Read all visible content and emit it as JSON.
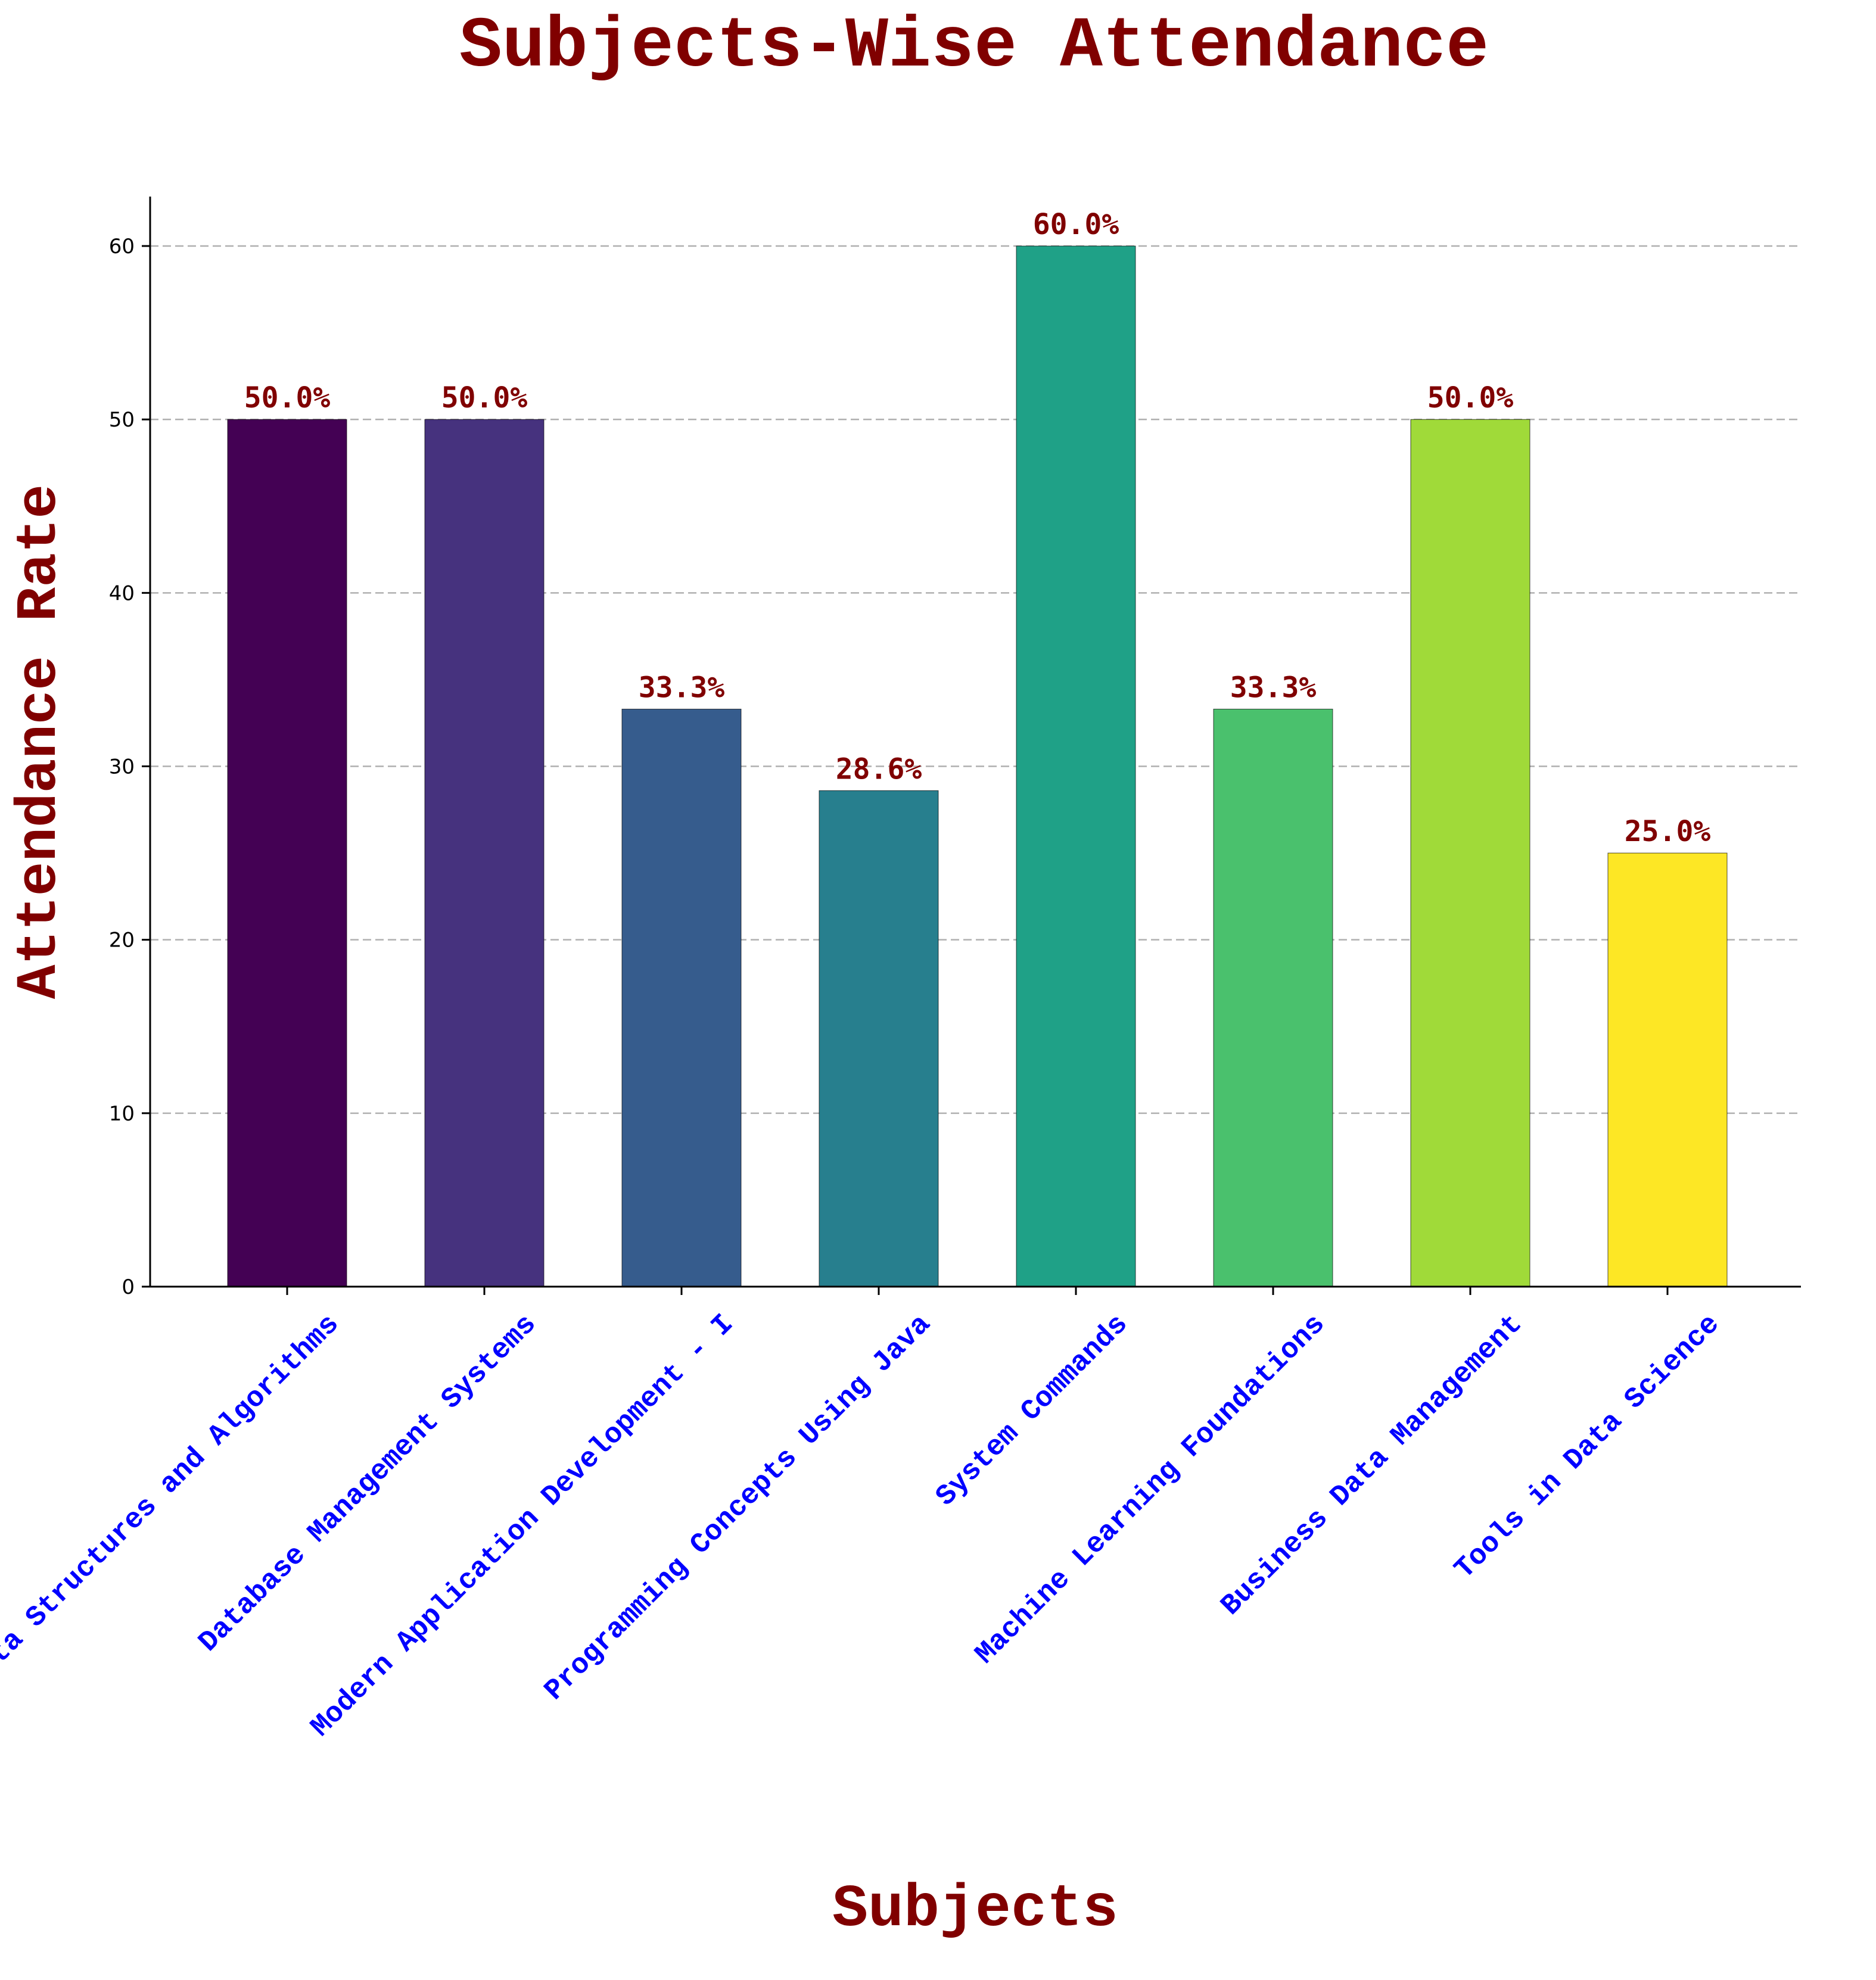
{
  "chart_data": {
    "type": "bar",
    "title": "Subjects-Wise Attendance",
    "xlabel": "Subjects",
    "ylabel": "Attendance Rate",
    "categories": [
      "Data Structures and Algorithms",
      "Database Management Systems",
      "Modern Application Development - I",
      "Programming Concepts Using Java",
      "System Commands",
      "Machine Learning Foundations",
      "Business Data Management",
      "Tools in Data Science"
    ],
    "values": [
      50.0,
      50.0,
      33.3,
      28.6,
      60.0,
      33.3,
      50.0,
      25.0
    ],
    "value_labels": [
      "50.0%",
      "50.0%",
      "33.3%",
      "28.6%",
      "60.0%",
      "33.3%",
      "50.0%",
      "25.0%"
    ],
    "bar_colors": [
      "#440154",
      "#46327e",
      "#365c8d",
      "#277f8e",
      "#1fa187",
      "#4ac16d",
      "#a0da39",
      "#fde725"
    ],
    "ylim": [
      0,
      63
    ],
    "yticks": [
      0,
      10,
      20,
      30,
      40,
      50,
      60
    ],
    "grid": "y-dashed",
    "legend": "none",
    "colors": {
      "title": "#800000",
      "axis_labels": "#800000",
      "value_labels": "#800000",
      "x_tick_labels": "#0000ff",
      "grid": "#b0b0b0"
    }
  }
}
